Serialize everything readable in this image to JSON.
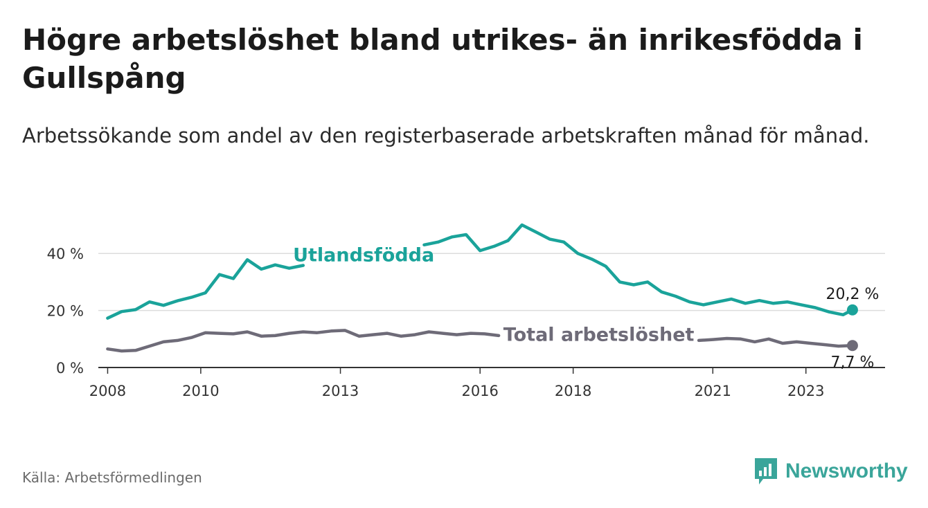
{
  "title": "Högre arbetslöshet bland utrikes- än inrikesfödda i Gullspång",
  "subtitle": "Arbetssökande som andel av den registerbaserade arbetskraften månad för månad.",
  "source": "Källa: Arbetsförmedlingen",
  "logo": {
    "text": "Newsworthy",
    "icon": "bar-chart-bubble-icon"
  },
  "colors": {
    "utlandsfodda": "#1aa39a",
    "total": "#6e6b78",
    "grid": "#dcdcdc",
    "axis": "#333333",
    "brand": "#3aa59a"
  },
  "chart_data": {
    "type": "line",
    "title": "Högre arbetslöshet bland utrikes- än inrikesfödda i Gullspång",
    "xlabel": "",
    "ylabel": "",
    "xlim": [
      2007.8,
      2024.7
    ],
    "ylim": [
      0,
      50
    ],
    "y_ticks": [
      0,
      20,
      40
    ],
    "y_tick_labels": [
      "0 %",
      "20 %",
      "40 %"
    ],
    "x_ticks": [
      2008,
      2010,
      2013,
      2016,
      2018,
      2021,
      2023
    ],
    "x_tick_labels": [
      "2008",
      "2010",
      "2013",
      "2016",
      "2018",
      "2021",
      "2023"
    ],
    "grid": true,
    "series": [
      {
        "name": "Utlandsfödda",
        "label": "Utlandsfödda",
        "end_label": "20,2 %",
        "end_value": 20.2,
        "gaps": [
          [
            2012.2,
            2014.8
          ]
        ],
        "x": [
          2008.0,
          2008.3,
          2008.6,
          2008.9,
          2009.2,
          2009.5,
          2009.8,
          2010.1,
          2010.4,
          2010.7,
          2011.0,
          2011.3,
          2011.6,
          2011.9,
          2012.2,
          2014.8,
          2015.1,
          2015.4,
          2015.7,
          2016.0,
          2016.3,
          2016.6,
          2016.9,
          2017.2,
          2017.5,
          2017.8,
          2018.1,
          2018.4,
          2018.7,
          2019.0,
          2019.3,
          2019.6,
          2019.9,
          2020.2,
          2020.5,
          2020.8,
          2021.1,
          2021.4,
          2021.7,
          2022.0,
          2022.3,
          2022.6,
          2022.9,
          2023.2,
          2023.5,
          2023.8,
          2024.0
        ],
        "y": [
          17.3,
          19.6,
          20.3,
          23.0,
          21.8,
          23.4,
          24.6,
          26.2,
          32.6,
          31.2,
          37.8,
          34.5,
          36.0,
          34.8,
          35.8,
          43.0,
          44.0,
          45.8,
          46.6,
          41.0,
          42.5,
          44.5,
          50.0,
          47.5,
          45.0,
          44.0,
          40.0,
          38.0,
          35.5,
          30.0,
          29.0,
          30.0,
          26.5,
          25.0,
          23.0,
          22.0,
          23.0,
          24.0,
          22.5,
          23.5,
          22.5,
          23.0,
          22.0,
          21.0,
          19.5,
          18.5,
          20.2
        ]
      },
      {
        "name": "Total arbetslöshet",
        "label": "Total arbetslöshet",
        "end_label": "7,7 %",
        "end_value": 7.7,
        "gaps": [
          [
            2016.4,
            2020.7
          ]
        ],
        "x": [
          2008.0,
          2008.3,
          2008.6,
          2008.9,
          2009.2,
          2009.5,
          2009.8,
          2010.1,
          2010.4,
          2010.7,
          2011.0,
          2011.3,
          2011.6,
          2011.9,
          2012.2,
          2012.5,
          2012.8,
          2013.1,
          2013.4,
          2013.7,
          2014.0,
          2014.3,
          2014.6,
          2014.9,
          2015.2,
          2015.5,
          2015.8,
          2016.1,
          2016.4,
          2020.7,
          2021.0,
          2021.3,
          2021.6,
          2021.9,
          2022.2,
          2022.5,
          2022.8,
          2023.1,
          2023.4,
          2023.7,
          2024.0
        ],
        "y": [
          6.5,
          5.8,
          6.0,
          7.5,
          9.0,
          9.5,
          10.5,
          12.2,
          12.0,
          11.8,
          12.5,
          11.0,
          11.2,
          12.0,
          12.5,
          12.2,
          12.8,
          13.0,
          11.0,
          11.5,
          12.0,
          11.0,
          11.5,
          12.5,
          12.0,
          11.5,
          12.0,
          11.8,
          11.2,
          9.5,
          9.8,
          10.2,
          10.0,
          9.0,
          10.0,
          8.5,
          9.0,
          8.5,
          8.0,
          7.5,
          7.7
        ]
      }
    ]
  }
}
